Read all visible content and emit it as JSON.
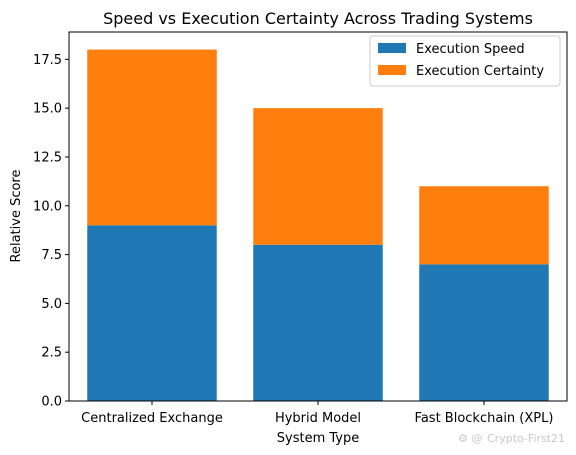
{
  "chart_data": {
    "type": "bar",
    "stacked": true,
    "title": "Speed vs Execution Certainty Across Trading Systems",
    "xlabel": "System Type",
    "ylabel": "Relative Score",
    "categories": [
      "Centralized Exchange",
      "Hybrid Model",
      "Fast Blockchain (XPL)"
    ],
    "series": [
      {
        "name": "Execution Speed",
        "values": [
          9,
          8,
          7
        ],
        "color": "#1f77b4"
      },
      {
        "name": "Execution Certainty",
        "values": [
          9,
          7,
          4
        ],
        "color": "#ff7f0e"
      }
    ],
    "ylim": [
      0,
      18.9
    ],
    "yticks": [
      0.0,
      2.5,
      5.0,
      7.5,
      10.0,
      12.5,
      15.0,
      17.5
    ],
    "ytick_labels": [
      "0.0",
      "2.5",
      "5.0",
      "7.5",
      "10.0",
      "12.5",
      "15.0",
      "17.5"
    ],
    "grid": false,
    "legend_position": "top-right"
  },
  "watermark": {
    "text": "Crypto-First21"
  }
}
